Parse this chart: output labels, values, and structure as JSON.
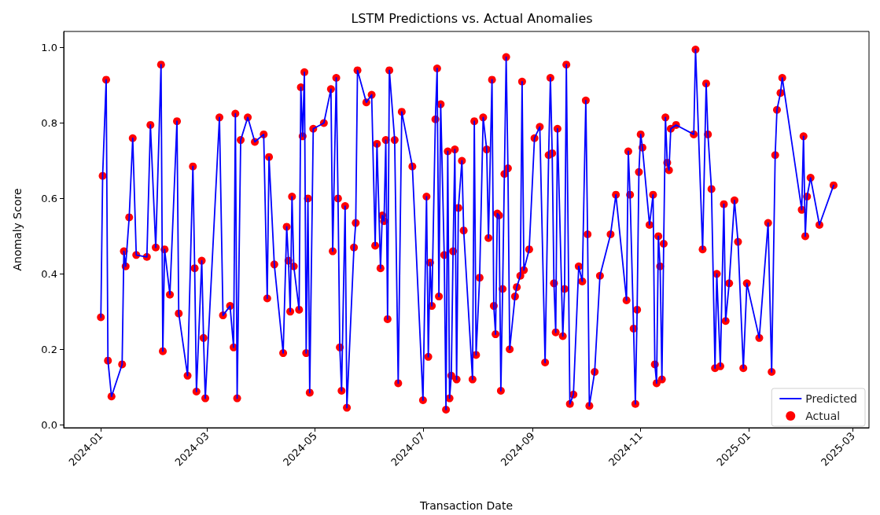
{
  "chart_data": {
    "type": "line",
    "title": "LSTM Predictions vs. Actual Anomalies",
    "xlabel": "Transaction Date",
    "ylabel": "Anomaly Score",
    "x": [
      "2024-01-01",
      "2024-01-02",
      "2024-01-04",
      "2024-01-05",
      "2024-01-07",
      "2024-01-13",
      "2024-01-14",
      "2024-01-15",
      "2024-01-17",
      "2024-01-19",
      "2024-01-21",
      "2024-01-27",
      "2024-01-29",
      "2024-02-01",
      "2024-02-04",
      "2024-02-05",
      "2024-02-06",
      "2024-02-09",
      "2024-02-13",
      "2024-02-14",
      "2024-02-19",
      "2024-02-22",
      "2024-02-23",
      "2024-02-24",
      "2024-02-27",
      "2024-02-28",
      "2024-02-29",
      "2024-03-08",
      "2024-03-10",
      "2024-03-14",
      "2024-03-16",
      "2024-03-17",
      "2024-03-18",
      "2024-03-20",
      "2024-03-24",
      "2024-03-28",
      "2024-04-02",
      "2024-04-04",
      "2024-04-05",
      "2024-04-08",
      "2024-04-13",
      "2024-04-15",
      "2024-04-16",
      "2024-04-17",
      "2024-04-18",
      "2024-04-19",
      "2024-04-22",
      "2024-04-23",
      "2024-04-24",
      "2024-04-25",
      "2024-04-26",
      "2024-04-27",
      "2024-04-28",
      "2024-04-30",
      "2024-05-06",
      "2024-05-10",
      "2024-05-11",
      "2024-05-13",
      "2024-05-14",
      "2024-05-15",
      "2024-05-16",
      "2024-05-18",
      "2024-05-19",
      "2024-05-23",
      "2024-05-24",
      "2024-05-25",
      "2024-05-30",
      "2024-06-02",
      "2024-06-04",
      "2024-06-05",
      "2024-06-07",
      "2024-06-08",
      "2024-06-09",
      "2024-06-10",
      "2024-06-11",
      "2024-06-12",
      "2024-06-15",
      "2024-06-17",
      "2024-06-19",
      "2024-06-25",
      "2024-07-01",
      "2024-07-03",
      "2024-07-04",
      "2024-07-05",
      "2024-07-06",
      "2024-07-08",
      "2024-07-09",
      "2024-07-10",
      "2024-07-11",
      "2024-07-13",
      "2024-07-14",
      "2024-07-15",
      "2024-07-16",
      "2024-07-17",
      "2024-07-18",
      "2024-07-19",
      "2024-07-20",
      "2024-07-21",
      "2024-07-23",
      "2024-07-24",
      "2024-07-29",
      "2024-07-30",
      "2024-07-31",
      "2024-08-02",
      "2024-08-04",
      "2024-08-06",
      "2024-08-07",
      "2024-08-09",
      "2024-08-10",
      "2024-08-11",
      "2024-08-12",
      "2024-08-13",
      "2024-08-14",
      "2024-08-15",
      "2024-08-16",
      "2024-08-17",
      "2024-08-18",
      "2024-08-19",
      "2024-08-22",
      "2024-08-23",
      "2024-08-25",
      "2024-08-26",
      "2024-08-27",
      "2024-08-30",
      "2024-09-02",
      "2024-09-05",
      "2024-09-08",
      "2024-09-10",
      "2024-09-11",
      "2024-09-12",
      "2024-09-13",
      "2024-09-14",
      "2024-09-15",
      "2024-09-18",
      "2024-09-19",
      "2024-09-20",
      "2024-09-22",
      "2024-09-24",
      "2024-09-27",
      "2024-09-29",
      "2024-10-01",
      "2024-10-02",
      "2024-10-03",
      "2024-10-06",
      "2024-10-09",
      "2024-10-15",
      "2024-10-18",
      "2024-10-24",
      "2024-10-25",
      "2024-10-26",
      "2024-10-28",
      "2024-10-29",
      "2024-10-30",
      "2024-10-31",
      "2024-11-01",
      "2024-11-02",
      "2024-11-06",
      "2024-11-08",
      "2024-11-09",
      "2024-11-10",
      "2024-11-11",
      "2024-11-12",
      "2024-11-13",
      "2024-11-14",
      "2024-11-15",
      "2024-11-16",
      "2024-11-17",
      "2024-11-18",
      "2024-11-21",
      "2024-12-01",
      "2024-12-02",
      "2024-12-06",
      "2024-12-08",
      "2024-12-09",
      "2024-12-11",
      "2024-12-13",
      "2024-12-14",
      "2024-12-16",
      "2024-12-18",
      "2024-12-19",
      "2024-12-21",
      "2024-12-24",
      "2024-12-26",
      "2024-12-29",
      "2024-12-31",
      "2025-01-07",
      "2025-01-12",
      "2025-01-14",
      "2025-01-16",
      "2025-01-17",
      "2025-01-19",
      "2025-01-20",
      "2025-01-31",
      "2025-02-01",
      "2025-02-02",
      "2025-02-03",
      "2025-02-05",
      "2025-02-10",
      "2025-02-18"
    ],
    "series": [
      {
        "name": "Predicted",
        "color": "#0000ff",
        "marker": "none",
        "values": [
          0.285,
          0.66,
          0.915,
          0.17,
          0.075,
          0.16,
          0.46,
          0.42,
          0.55,
          0.76,
          0.45,
          0.445,
          0.795,
          0.47,
          0.955,
          0.195,
          0.465,
          0.345,
          0.805,
          0.295,
          0.13,
          0.685,
          0.415,
          0.088,
          0.435,
          0.23,
          0.07,
          0.815,
          0.29,
          0.315,
          0.205,
          0.825,
          0.07,
          0.755,
          0.815,
          0.75,
          0.77,
          0.335,
          0.71,
          0.425,
          0.19,
          0.525,
          0.435,
          0.3,
          0.605,
          0.42,
          0.305,
          0.895,
          0.765,
          0.935,
          0.19,
          0.6,
          0.085,
          0.785,
          0.8,
          0.89,
          0.46,
          0.92,
          0.6,
          0.205,
          0.09,
          0.58,
          0.045,
          0.47,
          0.535,
          0.94,
          0.855,
          0.875,
          0.475,
          0.745,
          0.415,
          0.555,
          0.54,
          0.755,
          0.28,
          0.94,
          0.755,
          0.11,
          0.83,
          0.685,
          0.065,
          0.605,
          0.18,
          0.43,
          0.315,
          0.81,
          0.945,
          0.34,
          0.85,
          0.45,
          0.04,
          0.725,
          0.07,
          0.13,
          0.46,
          0.73,
          0.12,
          0.575,
          0.7,
          0.515,
          0.12,
          0.805,
          0.185,
          0.39,
          0.815,
          0.73,
          0.495,
          0.915,
          0.315,
          0.24,
          0.56,
          0.555,
          0.09,
          0.36,
          0.665,
          0.975,
          0.68,
          0.2,
          0.34,
          0.365,
          0.395,
          0.91,
          0.41,
          0.465,
          0.76,
          0.79,
          0.165,
          0.715,
          0.92,
          0.72,
          0.375,
          0.245,
          0.785,
          0.235,
          0.36,
          0.955,
          0.055,
          0.08,
          0.42,
          0.38,
          0.86,
          0.505,
          0.05,
          0.14,
          0.395,
          0.505,
          0.61,
          0.33,
          0.725,
          0.61,
          0.255,
          0.055,
          0.305,
          0.67,
          0.77,
          0.735,
          0.53,
          0.61,
          0.16,
          0.11,
          0.5,
          0.42,
          0.12,
          0.48,
          0.815,
          0.695,
          0.675,
          0.785,
          0.795,
          0.77,
          0.995,
          0.465,
          0.905,
          0.77,
          0.625,
          0.15,
          0.4,
          0.155,
          0.585,
          0.275,
          0.375,
          0.595,
          0.485,
          0.15,
          0.375,
          0.23,
          0.535,
          0.14,
          0.715,
          0.835,
          0.88,
          0.92,
          0.57,
          0.765,
          0.5,
          0.605,
          0.655,
          0.53,
          0.635
        ]
      },
      {
        "name": "Actual",
        "type": "scatter",
        "color": "#ff0000",
        "marker": "circle",
        "values": [
          0.285,
          0.66,
          0.915,
          0.17,
          0.075,
          0.16,
          0.46,
          0.42,
          0.55,
          0.76,
          0.45,
          0.445,
          0.795,
          0.47,
          0.955,
          0.195,
          0.465,
          0.345,
          0.805,
          0.295,
          0.13,
          0.685,
          0.415,
          0.088,
          0.435,
          0.23,
          0.07,
          0.815,
          0.29,
          0.315,
          0.205,
          0.825,
          0.07,
          0.755,
          0.815,
          0.75,
          0.77,
          0.335,
          0.71,
          0.425,
          0.19,
          0.525,
          0.435,
          0.3,
          0.605,
          0.42,
          0.305,
          0.895,
          0.765,
          0.935,
          0.19,
          0.6,
          0.085,
          0.785,
          0.8,
          0.89,
          0.46,
          0.92,
          0.6,
          0.205,
          0.09,
          0.58,
          0.045,
          0.47,
          0.535,
          0.94,
          0.855,
          0.875,
          0.475,
          0.745,
          0.415,
          0.555,
          0.54,
          0.755,
          0.28,
          0.94,
          0.755,
          0.11,
          0.83,
          0.685,
          0.065,
          0.605,
          0.18,
          0.43,
          0.315,
          0.81,
          0.945,
          0.34,
          0.85,
          0.45,
          0.04,
          0.725,
          0.07,
          0.13,
          0.46,
          0.73,
          0.12,
          0.575,
          0.7,
          0.515,
          0.12,
          0.805,
          0.185,
          0.39,
          0.815,
          0.73,
          0.495,
          0.915,
          0.315,
          0.24,
          0.56,
          0.555,
          0.09,
          0.36,
          0.665,
          0.975,
          0.68,
          0.2,
          0.34,
          0.365,
          0.395,
          0.91,
          0.41,
          0.465,
          0.76,
          0.79,
          0.165,
          0.715,
          0.92,
          0.72,
          0.375,
          0.245,
          0.785,
          0.235,
          0.36,
          0.955,
          0.055,
          0.08,
          0.42,
          0.38,
          0.86,
          0.505,
          0.05,
          0.14,
          0.395,
          0.505,
          0.61,
          0.33,
          0.725,
          0.61,
          0.255,
          0.055,
          0.305,
          0.67,
          0.77,
          0.735,
          0.53,
          0.61,
          0.16,
          0.11,
          0.5,
          0.42,
          0.12,
          0.48,
          0.815,
          0.695,
          0.675,
          0.785,
          0.795,
          0.77,
          0.995,
          0.465,
          0.905,
          0.77,
          0.625,
          0.15,
          0.4,
          0.155,
          0.585,
          0.275,
          0.375,
          0.595,
          0.485,
          0.15,
          0.375,
          0.23,
          0.535,
          0.14,
          0.715,
          0.835,
          0.88,
          0.92,
          0.57,
          0.765,
          0.5,
          0.605,
          0.655,
          0.53,
          0.635
        ]
      }
    ],
    "xlim": [
      "2023-12-11",
      "2025-03-10"
    ],
    "xticks": [
      "2024-01",
      "2024-03",
      "2024-05",
      "2024-07",
      "2024-09",
      "2024-11",
      "2025-01",
      "2025-03"
    ],
    "ylim": [
      -0.008,
      1.043
    ],
    "yticks": [
      {
        "value": 0,
        "label": "0.0"
      },
      0.2,
      0.4,
      0.6,
      0.8,
      {
        "value": 1,
        "label": "1.0"
      }
    ],
    "grid": false,
    "legend": "bottom right",
    "line_style": "solid"
  }
}
